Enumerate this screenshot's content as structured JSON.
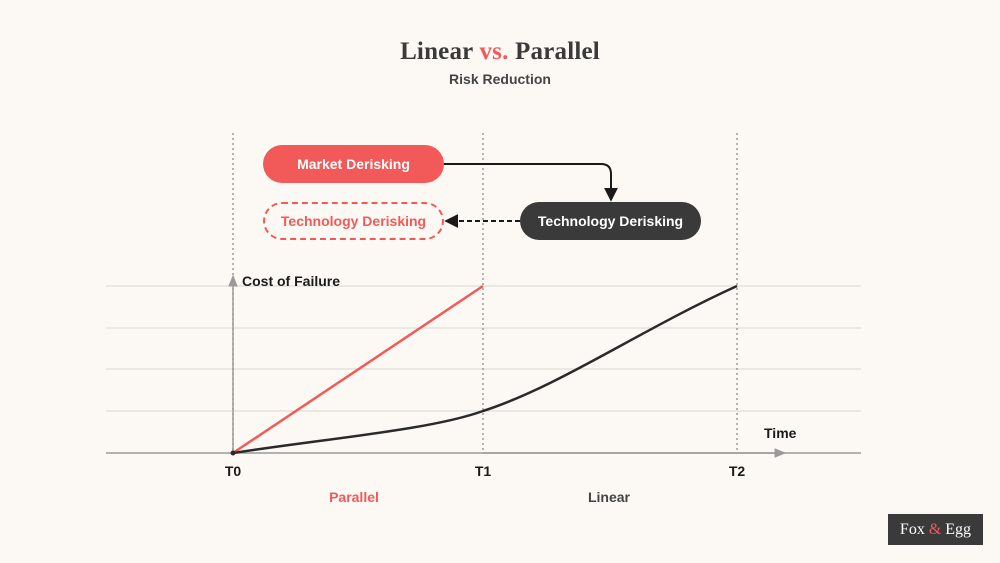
{
  "title": {
    "part1": "Linear",
    "accent": "vs.",
    "part2": "Parallel"
  },
  "subtitle": "Risk Reduction",
  "boxes": {
    "market": "Market Derisking",
    "tech_parallel": "Technology Derisking",
    "tech_linear": "Technology Derisking"
  },
  "axes": {
    "y_label": "Cost of Failure",
    "x_label": "Time",
    "ticks": [
      "T0",
      "T1",
      "T2"
    ]
  },
  "regions": {
    "parallel": "Parallel",
    "linear": "Linear"
  },
  "logo": {
    "left": "Fox",
    "amp": "&",
    "right": "Egg"
  },
  "colors": {
    "accent": "#f25a5a",
    "dark": "#3a3a3a",
    "background": "#fcf9f4"
  }
}
